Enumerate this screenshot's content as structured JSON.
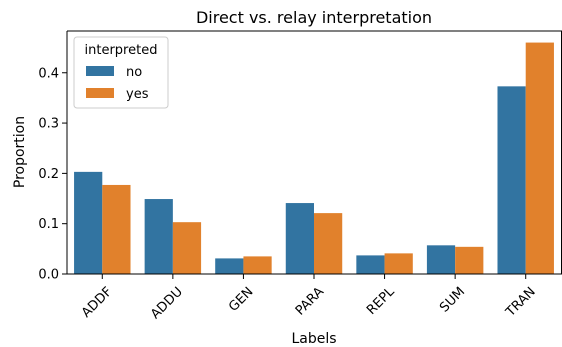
{
  "chart_data": {
    "type": "bar",
    "title": "Direct vs. relay interpretation",
    "xlabel": "Labels",
    "ylabel": "Proportion",
    "categories": [
      "ADDF",
      "ADDU",
      "GEN",
      "PARA",
      "REPL",
      "SUM",
      "TRAN"
    ],
    "series": [
      {
        "name": "no",
        "color": "#3274a1",
        "values": [
          0.203,
          0.149,
          0.031,
          0.141,
          0.037,
          0.057,
          0.373
        ]
      },
      {
        "name": "yes",
        "color": "#e1812c",
        "values": [
          0.177,
          0.103,
          0.035,
          0.121,
          0.041,
          0.054,
          0.46
        ]
      }
    ],
    "legend": {
      "title": "interpreted",
      "placement": "top-left"
    },
    "ylim": [
      0,
      0.483
    ],
    "yticks": [
      0.0,
      0.1,
      0.2,
      0.3,
      0.4
    ],
    "ytick_labels": [
      "0.0",
      "0.1",
      "0.2",
      "0.3",
      "0.4"
    ],
    "grid": false
  }
}
